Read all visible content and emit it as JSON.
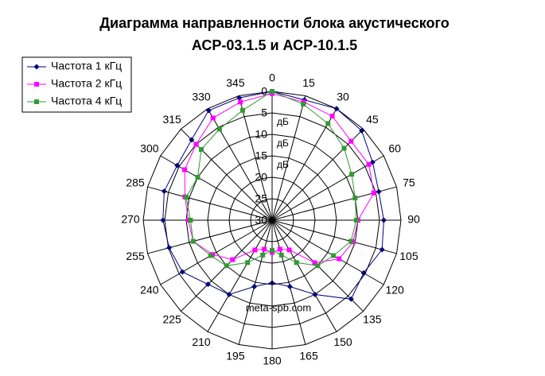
{
  "chart_data": {
    "type": "radar",
    "title": [
      "Диаграмма направленности блока акустического",
      "АСР-03.1.5 и АСР-10.1.5"
    ],
    "categories": [
      "0",
      "15",
      "30",
      "45",
      "60",
      "75",
      "90",
      "105",
      "120",
      "135",
      "150",
      "165",
      "180",
      "195",
      "210",
      "225",
      "240",
      "255",
      "270",
      "285",
      "300",
      "315",
      "330",
      "345"
    ],
    "rlim": [
      -30,
      0
    ],
    "rticks": [
      {
        "value": 0,
        "label": "0"
      },
      {
        "value": -5,
        "label": "5"
      },
      {
        "value": -10,
        "label": "10"
      },
      {
        "value": -15,
        "label": "15"
      },
      {
        "value": -20,
        "label": "20"
      },
      {
        "value": -25,
        "label": "25"
      },
      {
        "value": -30,
        "label": "30"
      }
    ],
    "r_unit": "дБ",
    "annotation": "meta-spb.com",
    "legend": "top-left",
    "series": [
      {
        "name": "Частота 1 кГц",
        "color": "#000080",
        "marker": "diamond",
        "values": [
          0,
          -1,
          0,
          -0.5,
          -3,
          -4.3,
          -4,
          -3.5,
          -5.4,
          -4,
          -10,
          -14,
          -15.4,
          -14,
          -10,
          -8.9,
          -5.9,
          -5.2,
          -4.6,
          -4,
          -4.5,
          -3.5,
          -0.5,
          -0.5
        ]
      },
      {
        "name": "Частота 2 кГц",
        "color": "#ff00ff",
        "marker": "square",
        "values": [
          -0.5,
          -1.5,
          -2,
          -4,
          -4,
          -5.5,
          -10,
          -10.5,
          -12,
          -16,
          -22,
          -23,
          -22.5,
          -23,
          -22,
          -17,
          -14,
          -11,
          -10.5,
          -9,
          -6.5,
          -5,
          -2.5,
          -1.5
        ]
      },
      {
        "name": "Частота 4 кГц",
        "color": "#339933",
        "marker": "square",
        "values": [
          0,
          -2,
          -4,
          -6.3,
          -8.6,
          -10,
          -10.4,
          -11,
          -13.5,
          -15,
          -18.6,
          -21.6,
          -23,
          -21.6,
          -18.6,
          -15,
          -13.5,
          -11,
          -11,
          -9.3,
          -10,
          -6.7,
          -5.5,
          -3.5
        ]
      }
    ]
  }
}
